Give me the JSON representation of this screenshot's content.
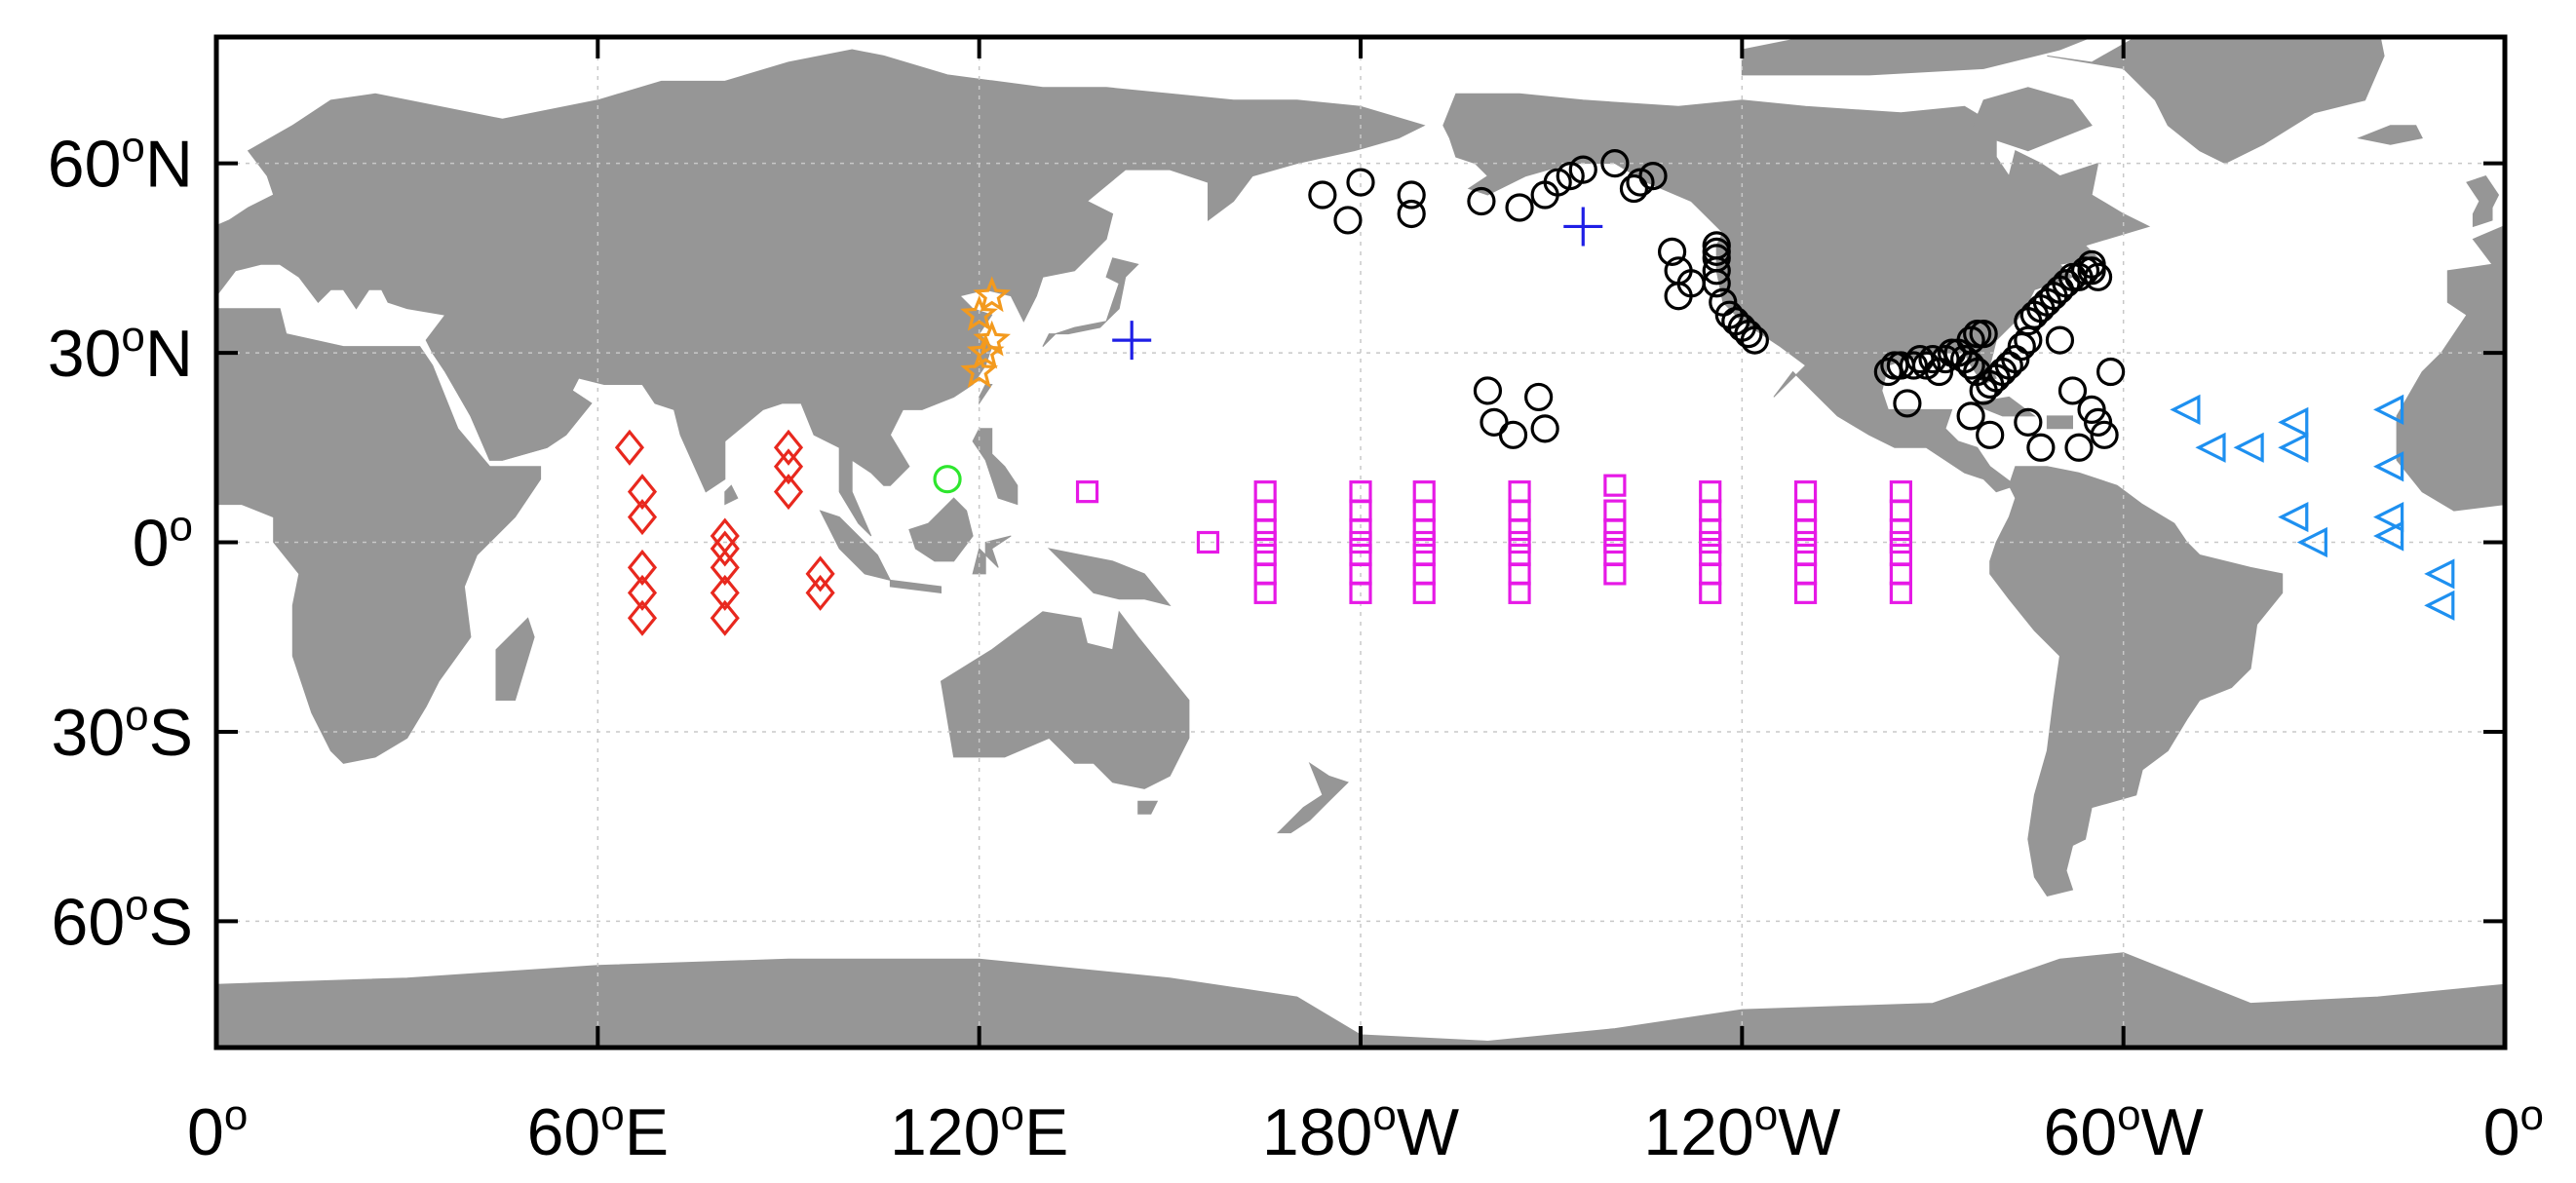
{
  "colors": {
    "land": "#969696",
    "ocean": "#ffffff",
    "frame": "#000000",
    "grid": "#c8c8c8",
    "black_circles": "#000000",
    "red_diamonds": "#e8281e",
    "orange_stars": "#f39a1e",
    "green_circle": "#2ee62e",
    "blue_plus": "#1f1fe6",
    "magenta_squares": "#e619e6",
    "cyan_triangles": "#1e90f0"
  },
  "map": {
    "projection": "equirectangular (Pacific-centered, 0°–360° longitude)",
    "lon_range": [
      0,
      360
    ],
    "lat_range": [
      -80,
      80
    ],
    "grid": true,
    "x_ticks": [
      {
        "value": 0,
        "num": "0",
        "hemi": ""
      },
      {
        "value": 60,
        "num": "60",
        "hemi": "E"
      },
      {
        "value": 120,
        "num": "120",
        "hemi": "E"
      },
      {
        "value": 180,
        "num": "180",
        "hemi": "W"
      },
      {
        "value": 240,
        "num": "120",
        "hemi": "W"
      },
      {
        "value": 300,
        "num": "60",
        "hemi": "W"
      },
      {
        "value": 360,
        "num": "0",
        "hemi": ""
      }
    ],
    "y_ticks": [
      {
        "value": 60,
        "num": "60",
        "hemi": "N"
      },
      {
        "value": 30,
        "num": "30",
        "hemi": "N"
      },
      {
        "value": 0,
        "num": "0",
        "hemi": ""
      },
      {
        "value": -30,
        "num": "30",
        "hemi": "S"
      },
      {
        "value": -60,
        "num": "60",
        "hemi": "S"
      }
    ],
    "degree_symbol": "o"
  },
  "chart_data": {
    "type": "scatter",
    "xlabel": "",
    "ylabel": "",
    "xlim": [
      0,
      360
    ],
    "ylim": [
      -80,
      80
    ],
    "grid": true,
    "series": [
      {
        "marker": "circle-open",
        "color": "#000000",
        "points": [
          [
            174,
            55
          ],
          [
            178,
            51
          ],
          [
            180,
            57
          ],
          [
            188,
            55
          ],
          [
            188,
            52
          ],
          [
            199,
            54
          ],
          [
            205,
            53
          ],
          [
            209,
            55
          ],
          [
            211,
            57
          ],
          [
            213,
            58
          ],
          [
            215,
            59
          ],
          [
            220,
            60
          ],
          [
            223,
            56
          ],
          [
            226,
            58
          ],
          [
            224,
            57
          ],
          [
            200,
            24
          ],
          [
            201,
            19
          ],
          [
            204,
            17
          ],
          [
            208,
            23
          ],
          [
            209,
            18
          ],
          [
            232,
            41
          ],
          [
            229,
            46
          ],
          [
            230,
            43
          ],
          [
            230,
            39
          ],
          [
            236,
            47
          ],
          [
            236,
            46
          ],
          [
            236,
            45
          ],
          [
            236,
            43
          ],
          [
            236,
            41
          ],
          [
            237,
            38
          ],
          [
            238,
            36
          ],
          [
            239,
            35
          ],
          [
            240,
            34
          ],
          [
            241,
            33
          ],
          [
            242,
            32
          ],
          [
            263,
            27
          ],
          [
            264,
            28
          ],
          [
            265,
            28
          ],
          [
            266,
            22
          ],
          [
            267,
            28
          ],
          [
            268,
            29
          ],
          [
            269,
            28
          ],
          [
            270,
            29
          ],
          [
            271,
            27
          ],
          [
            272,
            29
          ],
          [
            273,
            30
          ],
          [
            274,
            30
          ],
          [
            275,
            29
          ],
          [
            276,
            28
          ],
          [
            277,
            27
          ],
          [
            276,
            32
          ],
          [
            277,
            33
          ],
          [
            278,
            33
          ],
          [
            278,
            24
          ],
          [
            279,
            25
          ],
          [
            280,
            26
          ],
          [
            281,
            27
          ],
          [
            282,
            28
          ],
          [
            283,
            29
          ],
          [
            284,
            31
          ],
          [
            285,
            32
          ],
          [
            285,
            35
          ],
          [
            286,
            36
          ],
          [
            287,
            37
          ],
          [
            288,
            38
          ],
          [
            289,
            39
          ],
          [
            290,
            40
          ],
          [
            291,
            41
          ],
          [
            292,
            42
          ],
          [
            293,
            42
          ],
          [
            294,
            43
          ],
          [
            295,
            44
          ],
          [
            295,
            43
          ],
          [
            296,
            42
          ],
          [
            276,
            20
          ],
          [
            279,
            17
          ],
          [
            285,
            19
          ],
          [
            287,
            15
          ],
          [
            290,
            32
          ],
          [
            292,
            24
          ],
          [
            293,
            15
          ],
          [
            295,
            21
          ],
          [
            296,
            19
          ],
          [
            297,
            17
          ],
          [
            298,
            27
          ]
        ]
      },
      {
        "marker": "diamond-open",
        "color": "#e8281e",
        "points": [
          [
            65,
            15
          ],
          [
            67,
            8
          ],
          [
            67,
            4
          ],
          [
            67,
            -4
          ],
          [
            67,
            -8
          ],
          [
            67,
            -12
          ],
          [
            80,
            1
          ],
          [
            80,
            -1
          ],
          [
            80,
            -4
          ],
          [
            80,
            -8
          ],
          [
            80,
            -12
          ],
          [
            90,
            15
          ],
          [
            90,
            12
          ],
          [
            90,
            8
          ],
          [
            95,
            -5
          ],
          [
            95,
            -8
          ]
        ]
      },
      {
        "marker": "star-open",
        "color": "#f39a1e",
        "points": [
          [
            122,
            39
          ],
          [
            120,
            36
          ],
          [
            122,
            32
          ],
          [
            121,
            30
          ],
          [
            120,
            27
          ]
        ]
      },
      {
        "marker": "circle-open",
        "color": "#2ee62e",
        "points": [
          [
            115,
            10
          ]
        ]
      },
      {
        "marker": "plus",
        "color": "#1f1fe6",
        "points": [
          [
            144,
            32
          ],
          [
            215,
            50
          ]
        ]
      },
      {
        "marker": "square-open",
        "color": "#e619e6",
        "points": [
          [
            137,
            8
          ],
          [
            156,
            0
          ],
          [
            165,
            8
          ],
          [
            165,
            5
          ],
          [
            165,
            2
          ],
          [
            165,
            0
          ],
          [
            165,
            -2
          ],
          [
            165,
            -5
          ],
          [
            165,
            -8
          ],
          [
            180,
            8
          ],
          [
            180,
            5
          ],
          [
            180,
            2
          ],
          [
            180,
            0
          ],
          [
            180,
            -2
          ],
          [
            180,
            -5
          ],
          [
            180,
            -8
          ],
          [
            190,
            8
          ],
          [
            190,
            5
          ],
          [
            190,
            2
          ],
          [
            190,
            0
          ],
          [
            190,
            -2
          ],
          [
            190,
            -5
          ],
          [
            190,
            -8
          ],
          [
            205,
            8
          ],
          [
            205,
            5
          ],
          [
            205,
            2
          ],
          [
            205,
            0
          ],
          [
            205,
            -2
          ],
          [
            205,
            -5
          ],
          [
            205,
            -8
          ],
          [
            220,
            9
          ],
          [
            220,
            5
          ],
          [
            220,
            2
          ],
          [
            220,
            0
          ],
          [
            220,
            -2
          ],
          [
            220,
            -5
          ],
          [
            235,
            8
          ],
          [
            235,
            5
          ],
          [
            235,
            2
          ],
          [
            235,
            0
          ],
          [
            235,
            -2
          ],
          [
            235,
            -5
          ],
          [
            235,
            -8
          ],
          [
            250,
            8
          ],
          [
            250,
            5
          ],
          [
            250,
            2
          ],
          [
            250,
            0
          ],
          [
            250,
            -2
          ],
          [
            250,
            -5
          ],
          [
            250,
            -8
          ],
          [
            265,
            8
          ],
          [
            265,
            5
          ],
          [
            265,
            2
          ],
          [
            265,
            0
          ],
          [
            265,
            -2
          ],
          [
            265,
            -5
          ],
          [
            265,
            -8
          ]
        ]
      },
      {
        "marker": "triangle-left-open",
        "color": "#1e90f0",
        "points": [
          [
            310,
            21
          ],
          [
            314,
            15
          ],
          [
            320,
            15
          ],
          [
            327,
            19
          ],
          [
            327,
            15
          ],
          [
            327,
            4
          ],
          [
            330,
            0
          ],
          [
            342,
            21
          ],
          [
            342,
            12
          ],
          [
            342,
            4
          ],
          [
            342,
            1
          ],
          [
            350,
            -5
          ],
          [
            350,
            -10
          ]
        ]
      }
    ]
  }
}
